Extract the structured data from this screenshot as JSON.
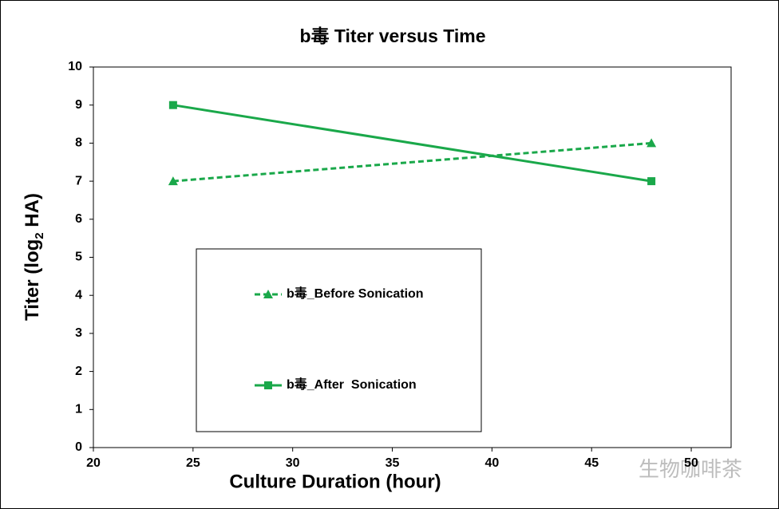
{
  "chart_data": {
    "type": "line",
    "title": "b毒 Titer versus Time",
    "x_label": "Culture Duration (hour)",
    "y_label": [
      "Titer (log",
      "2",
      " HA)"
    ],
    "x": [
      24,
      48
    ],
    "series": [
      {
        "name": "b毒_Before Sonication",
        "color": "#1aa84a",
        "dash": true,
        "marker": "triangle",
        "values": [
          7,
          8
        ]
      },
      {
        "name": "b毒_After  Sonication",
        "color": "#1aa84a",
        "dash": false,
        "marker": "square",
        "values": [
          9,
          7
        ]
      }
    ],
    "xlim": [
      20,
      52
    ],
    "xticks": [
      20,
      25,
      30,
      35,
      40,
      45,
      50
    ],
    "ylim": [
      0,
      10
    ],
    "yticks": [
      0,
      1,
      2,
      3,
      4,
      5,
      6,
      7,
      8,
      9,
      10
    ],
    "grid": false,
    "legend": "center"
  },
  "watermark": "生物咖啡茶"
}
